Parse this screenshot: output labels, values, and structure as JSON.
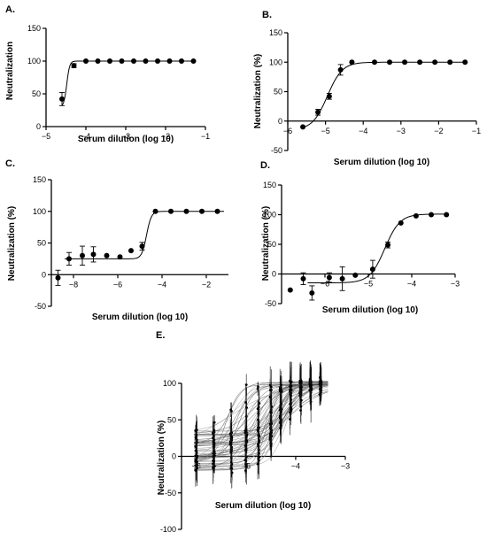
{
  "figure": {
    "panel_letters": [
      "A.",
      "B.",
      "C.",
      "D.",
      "E."
    ]
  },
  "chart_data": [
    {
      "panel": "A.",
      "type": "scatter",
      "xlabel": "Serum dilution (log 10)",
      "ylabel": "Neutralization",
      "xlim": [
        -5,
        -1
      ],
      "ylim": [
        0,
        150
      ],
      "xticks": [
        -5,
        -4,
        -3,
        -2,
        -1
      ],
      "yticks": [
        0,
        50,
        100,
        150
      ],
      "grid": false,
      "points": [
        {
          "x": -4.6,
          "y": 42,
          "err": 10
        },
        {
          "x": -4.3,
          "y": 93,
          "err": 3
        },
        {
          "x": -4.0,
          "y": 100
        },
        {
          "x": -3.7,
          "y": 100
        },
        {
          "x": -3.4,
          "y": 100
        },
        {
          "x": -3.1,
          "y": 100
        },
        {
          "x": -2.8,
          "y": 100
        },
        {
          "x": -2.5,
          "y": 100
        },
        {
          "x": -2.2,
          "y": 100
        },
        {
          "x": -1.9,
          "y": 100
        },
        {
          "x": -1.6,
          "y": 100
        },
        {
          "x": -1.3,
          "y": 100
        }
      ],
      "fit": {
        "bottom": 30,
        "top": 100,
        "ec50": -4.48,
        "hill": 12,
        "x_from": -4.6,
        "x_to": -1.3
      }
    },
    {
      "panel": "B.",
      "type": "scatter",
      "xlabel": "Serum dilution (log 10)",
      "ylabel": "Neutralization (%)",
      "xlim": [
        -6,
        -1
      ],
      "ylim": [
        -50,
        150
      ],
      "xticks": [
        -6,
        -5,
        -4,
        -3,
        -2,
        -1
      ],
      "yticks": [
        -50,
        0,
        50,
        100,
        150
      ],
      "grid": false,
      "points": [
        {
          "x": -5.6,
          "y": -10
        },
        {
          "x": -5.2,
          "y": 15,
          "err": 5
        },
        {
          "x": -4.9,
          "y": 42,
          "err": 5
        },
        {
          "x": -4.6,
          "y": 87,
          "err": 9
        },
        {
          "x": -4.3,
          "y": 100
        },
        {
          "x": -3.7,
          "y": 100
        },
        {
          "x": -3.3,
          "y": 100
        },
        {
          "x": -2.9,
          "y": 100
        },
        {
          "x": -2.5,
          "y": 100
        },
        {
          "x": -2.1,
          "y": 100
        },
        {
          "x": -1.7,
          "y": 100
        },
        {
          "x": -1.3,
          "y": 100
        }
      ],
      "fit": {
        "bottom": -15,
        "top": 100,
        "ec50": -4.95,
        "hill": 2.2,
        "x_from": -5.6,
        "x_to": -1.3
      }
    },
    {
      "panel": "C.",
      "type": "scatter",
      "xlabel": "Serum dilution (log 10)",
      "ylabel": "Neutralization (%)",
      "xlim": [
        -9,
        -1
      ],
      "ylim": [
        -50,
        150
      ],
      "xticks": [
        -8,
        -6,
        -4,
        -2
      ],
      "yticks": [
        -50,
        0,
        50,
        100,
        150
      ],
      "grid": false,
      "points": [
        {
          "x": -8.7,
          "y": -5,
          "err": 12
        },
        {
          "x": -8.2,
          "y": 25,
          "err": 10
        },
        {
          "x": -7.6,
          "y": 30,
          "err": 15
        },
        {
          "x": -7.1,
          "y": 32,
          "err": 12
        },
        {
          "x": -6.5,
          "y": 30
        },
        {
          "x": -5.9,
          "y": 28
        },
        {
          "x": -5.4,
          "y": 38
        },
        {
          "x": -4.9,
          "y": 45,
          "err": 6
        },
        {
          "x": -4.3,
          "y": 100
        },
        {
          "x": -3.6,
          "y": 100
        },
        {
          "x": -2.9,
          "y": 100
        },
        {
          "x": -2.2,
          "y": 100
        },
        {
          "x": -1.5,
          "y": 100
        }
      ],
      "fit": {
        "bottom": 25,
        "top": 100,
        "ec50": -4.7,
        "hill": 4,
        "x_from": -8.4,
        "x_to": -1.2
      }
    },
    {
      "panel": "D.",
      "type": "scatter",
      "xlabel": "Serum dilution (log 10)",
      "ylabel": "Neutralization (%)",
      "xlim": [
        -7,
        -3
      ],
      "ylim": [
        -50,
        150
      ],
      "xticks": [
        -6,
        -5,
        -4,
        -3
      ],
      "yticks": [
        -50,
        0,
        50,
        100,
        150
      ],
      "grid": false,
      "points": [
        {
          "x": -6.8,
          "y": -27
        },
        {
          "x": -6.5,
          "y": -8,
          "err": 10
        },
        {
          "x": -6.3,
          "y": -32,
          "err": 12
        },
        {
          "x": -5.9,
          "y": -6,
          "err": 8
        },
        {
          "x": -5.6,
          "y": -8,
          "err": 20
        },
        {
          "x": -5.3,
          "y": -2
        },
        {
          "x": -4.9,
          "y": 8,
          "err": 15
        },
        {
          "x": -4.55,
          "y": 49,
          "err": 5
        },
        {
          "x": -4.25,
          "y": 86
        },
        {
          "x": -3.9,
          "y": 98
        },
        {
          "x": -3.55,
          "y": 100
        },
        {
          "x": -3.2,
          "y": 100
        }
      ],
      "fit": {
        "bottom": -15,
        "top": 101,
        "ec50": -4.62,
        "hill": 2.5,
        "x_from": -6.4,
        "x_to": -3.2
      }
    },
    {
      "panel": "E.",
      "type": "line",
      "xlabel": "Serum dilution (log 10)",
      "ylabel": "Neutralization (%)",
      "xlim": [
        -6.3,
        -3
      ],
      "ylim": [
        -100,
        100
      ],
      "xticks": [
        -6,
        -5,
        -4,
        -3
      ],
      "yticks": [
        -100,
        -50,
        0,
        50,
        100
      ],
      "grid": false,
      "series_count": 60,
      "curve_x_range": [
        -6.05,
        -3.35
      ],
      "ec50_range": [
        -5.4,
        -4.1
      ],
      "hill_range": [
        0.9,
        3.5
      ],
      "bottom_range": [
        -20,
        35
      ],
      "top_range": [
        97,
        103
      ],
      "point_x_columns": [
        -6.0,
        -5.65,
        -5.3,
        -5.0,
        -4.75,
        -4.5,
        -4.3,
        -4.1,
        -3.9,
        -3.7,
        -3.5
      ]
    }
  ]
}
